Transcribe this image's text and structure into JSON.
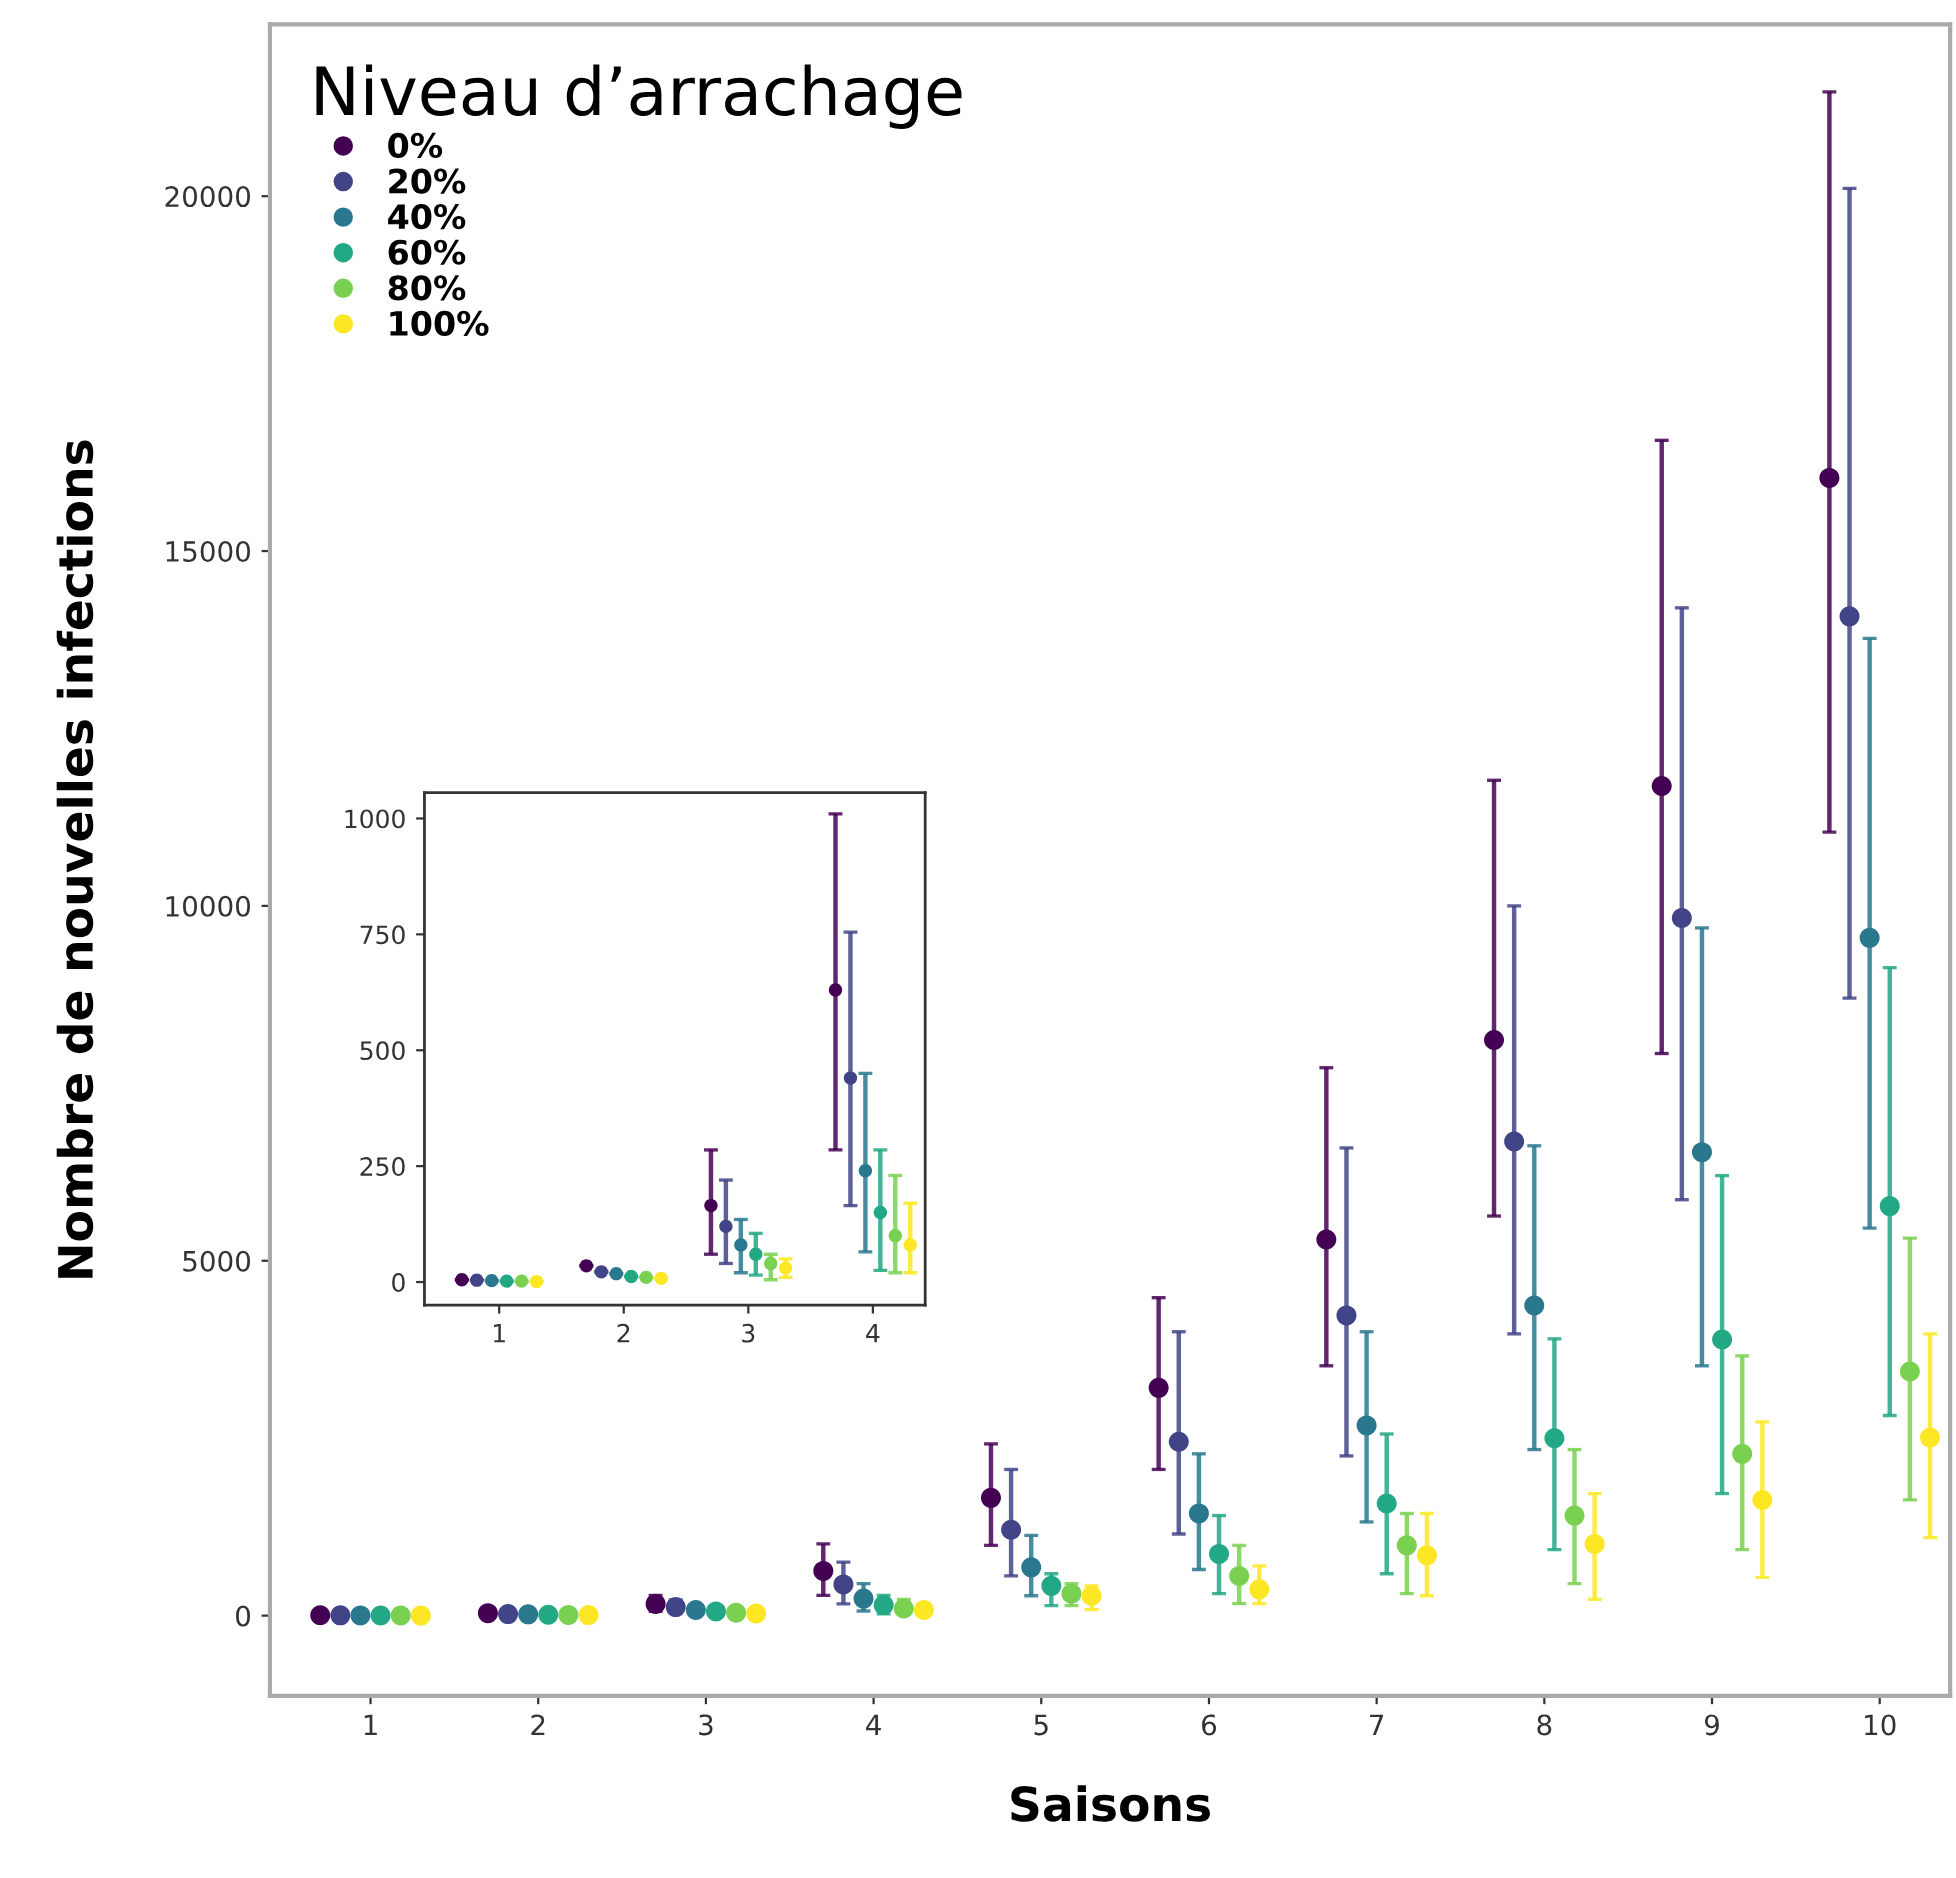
{
  "chart_data": [
    {
      "type": "scatter",
      "xlabel": "Saisons",
      "ylabel": "Nombre de nouvelles infections",
      "legend_title": "Niveau d’arrachage",
      "legend": "top left",
      "marker": "circle",
      "grid": false,
      "categories": [
        "1",
        "2",
        "3",
        "4",
        "5",
        "6",
        "7",
        "8",
        "9",
        "10"
      ],
      "ylim": [
        -1130,
        22420
      ],
      "yticks": [
        0,
        5000,
        10000,
        15000,
        20000
      ],
      "series": [
        {
          "name": "0%",
          "color": "#440154",
          "values": [
            5,
            35,
            165,
            630,
            1660,
            3210,
            5300,
            8110,
            11690,
            16030
          ],
          "errors": [
            null,
            null,
            [
              60,
              285
            ],
            [
              285,
              1010
            ],
            [
              990,
              2420
            ],
            [
              2060,
              4480
            ],
            [
              3520,
              7720
            ],
            [
              5630,
              11770
            ],
            [
              7920,
              16560
            ],
            [
              11040,
              21470
            ]
          ]
        },
        {
          "name": "20%",
          "color": "#414487",
          "values": [
            4,
            22,
            120,
            440,
            1210,
            2450,
            4230,
            6680,
            9830,
            14080
          ],
          "errors": [
            null,
            null,
            [
              40,
              220
            ],
            [
              165,
              755
            ],
            [
              560,
              2060
            ],
            [
              1150,
              4000
            ],
            [
              2250,
              6590
            ],
            [
              3970,
              10000
            ],
            [
              5860,
              14200
            ],
            [
              8700,
              20110
            ]
          ]
        },
        {
          "name": "40%",
          "color": "#2a788e",
          "values": [
            3,
            18,
            80,
            240,
            680,
            1440,
            2680,
            4370,
            6530,
            9550
          ],
          "errors": [
            null,
            null,
            [
              20,
              135
            ],
            [
              65,
              450
            ],
            [
              280,
              1130
            ],
            [
              650,
              2280
            ],
            [
              1320,
              4000
            ],
            [
              2340,
              6620
            ],
            [
              3520,
              9690
            ],
            [
              5460,
              13770
            ]
          ]
        },
        {
          "name": "60%",
          "color": "#22a884",
          "values": [
            2,
            12,
            60,
            150,
            420,
            870,
            1580,
            2500,
            3890,
            5770
          ],
          "errors": [
            null,
            null,
            [
              15,
              105
            ],
            [
              25,
              285
            ],
            [
              140,
              590
            ],
            [
              310,
              1410
            ],
            [
              590,
              2560
            ],
            [
              930,
              3900
            ],
            [
              1720,
              6200
            ],
            [
              2820,
              9130
            ]
          ]
        },
        {
          "name": "80%",
          "color": "#7ad151",
          "values": [
            2,
            10,
            40,
            100,
            310,
            560,
            990,
            1410,
            2280,
            3440
          ],
          "errors": [
            null,
            null,
            [
              5,
              60
            ],
            [
              20,
              230
            ],
            [
              140,
              450
            ],
            [
              170,
              990
            ],
            [
              310,
              1440
            ],
            [
              450,
              2340
            ],
            [
              930,
              3660
            ],
            [
              1630,
              5320
            ]
          ]
        },
        {
          "name": "100%",
          "color": "#fde725",
          "values": [
            1,
            8,
            30,
            80,
            280,
            370,
            850,
            1010,
            1630,
            2510
          ],
          "errors": [
            null,
            null,
            [
              10,
              50
            ],
            [
              20,
              170
            ],
            [
              85,
              420
            ],
            [
              170,
              700
            ],
            [
              280,
              1440
            ],
            [
              230,
              1720
            ],
            [
              540,
              2730
            ],
            [
              1100,
              3970
            ]
          ]
        }
      ]
    },
    {
      "type": "scatter",
      "marker": "circle",
      "grid": false,
      "categories": [
        "1",
        "2",
        "3",
        "4"
      ],
      "ylim": [
        -50,
        1056
      ],
      "yticks": [
        0,
        250,
        500,
        750,
        1000
      ],
      "series": [
        {
          "color": "#440154",
          "values": [
            5,
            35,
            165,
            630
          ],
          "errors": [
            null,
            null,
            [
              60,
              285
            ],
            [
              285,
              1010
            ]
          ]
        },
        {
          "color": "#414487",
          "values": [
            4,
            22,
            120,
            440
          ],
          "errors": [
            null,
            null,
            [
              40,
              220
            ],
            [
              165,
              755
            ]
          ]
        },
        {
          "color": "#2a788e",
          "values": [
            3,
            18,
            80,
            240
          ],
          "errors": [
            null,
            null,
            [
              20,
              135
            ],
            [
              65,
              450
            ]
          ]
        },
        {
          "color": "#22a884",
          "values": [
            2,
            12,
            60,
            150
          ],
          "errors": [
            null,
            null,
            [
              15,
              105
            ],
            [
              25,
              285
            ]
          ]
        },
        {
          "color": "#7ad151",
          "values": [
            2,
            10,
            40,
            100
          ],
          "errors": [
            null,
            null,
            [
              5,
              60
            ],
            [
              20,
              230
            ]
          ]
        },
        {
          "color": "#fde725",
          "values": [
            1,
            8,
            30,
            80
          ],
          "errors": [
            null,
            null,
            [
              10,
              50
            ],
            [
              20,
              170
            ]
          ]
        }
      ]
    }
  ]
}
